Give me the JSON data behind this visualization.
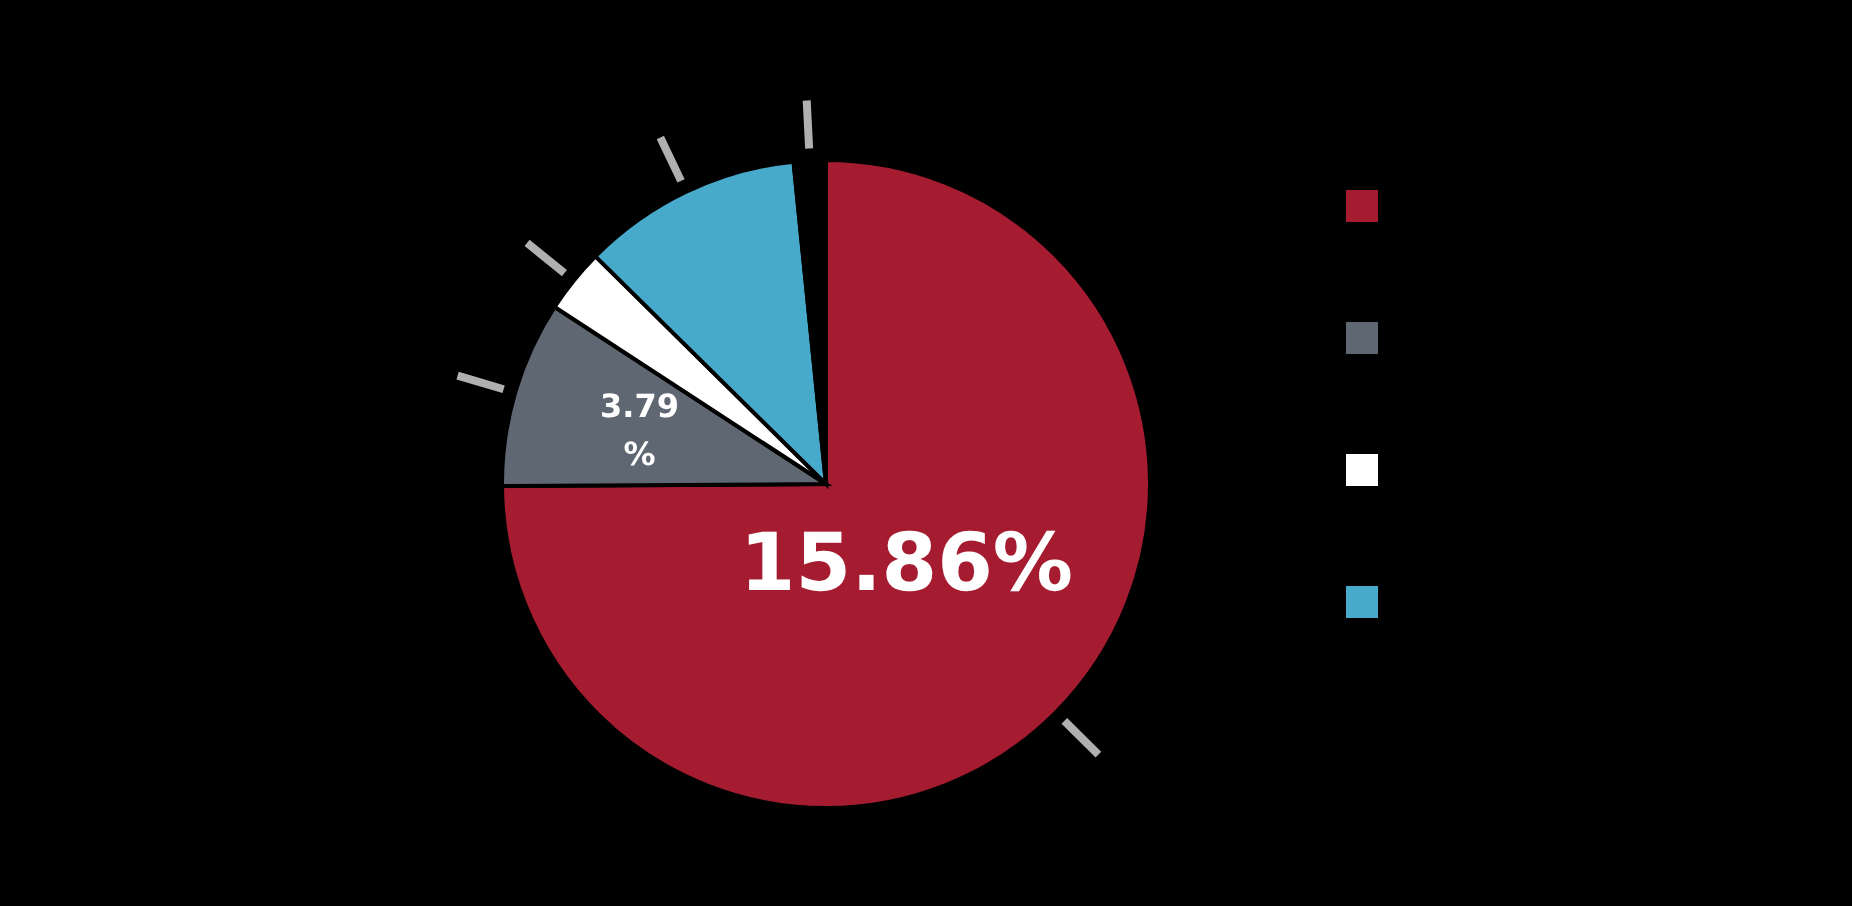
{
  "chart_data": {
    "type": "pie",
    "categories": [
      null,
      null,
      null,
      null,
      null
    ],
    "values": [
      74.9,
      9.3,
      3.2,
      11.0,
      1.6
    ],
    "colors": [
      "#a51c30",
      "#5f6872",
      "#ffffff",
      "#48aacb",
      "#000000"
    ],
    "annotations": [
      "15.86%",
      "3.79 %"
    ]
  }
}
